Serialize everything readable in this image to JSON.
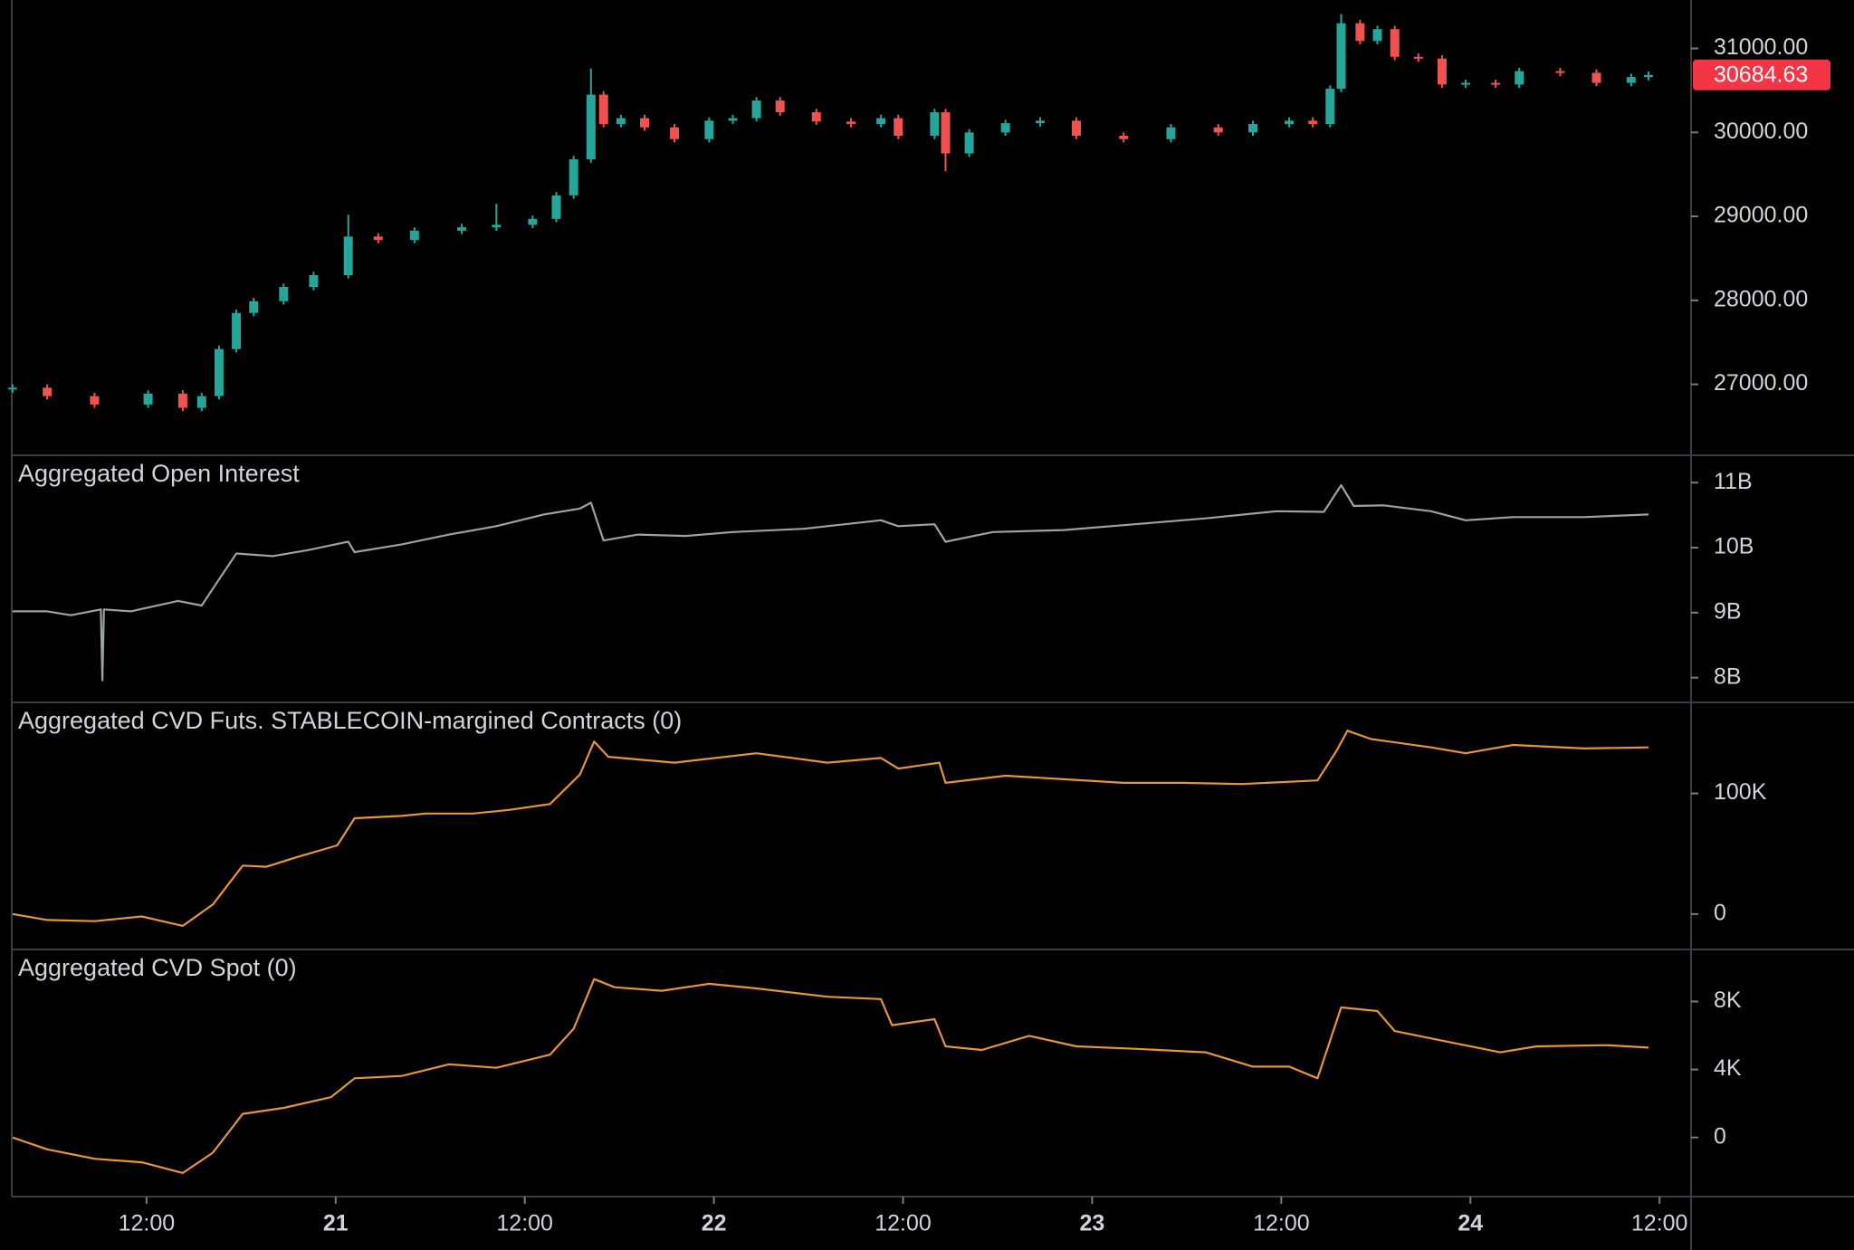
{
  "chart_data": [
    {
      "type": "candlestick",
      "up_color": "#26a69a",
      "down_color": "#ef5350",
      "last_color": "#f23645",
      "xlim": [
        3.45,
        110
      ],
      "ylim": [
        26155,
        31577
      ],
      "yticks": [
        {
          "value": 27000,
          "label": "27000.00"
        },
        {
          "value": 28000,
          "label": "28000.00"
        },
        {
          "value": 29000,
          "label": "29000.00"
        },
        {
          "value": 30000,
          "label": "30000.00"
        },
        {
          "value": 31000,
          "label": "31000.00"
        }
      ],
      "x": [
        3.5,
        5.7,
        8.7,
        12.1,
        14.3,
        15.5,
        16.6,
        17.7,
        18.8,
        20.7,
        22.6,
        24.8,
        26.7,
        29,
        32,
        34.2,
        36.5,
        38,
        39.1,
        40.2,
        41,
        42.1,
        43.6,
        45.5,
        47.7,
        49.2,
        50.7,
        52.2,
        54.5,
        56.7,
        58.6,
        59.7,
        62,
        62.7,
        64.2,
        66.5,
        68.7,
        71,
        74,
        77,
        80,
        82.2,
        84.5,
        86,
        87.1,
        87.8,
        89,
        90.1,
        91.2,
        92.7,
        94.2,
        95.7,
        97.6,
        99.1,
        101.7,
        104,
        106.2,
        107.3
      ],
      "open": [
        26940,
        26960,
        26860,
        26760,
        26890,
        26720,
        26860,
        27420,
        27850,
        27990,
        28160,
        28300,
        28760,
        28720,
        28830,
        28870,
        28900,
        28970,
        29250,
        29680,
        30450,
        30100,
        30170,
        30060,
        29920,
        30140,
        30170,
        30380,
        30240,
        30130,
        30100,
        30170,
        29960,
        30240,
        29750,
        30000,
        30110,
        30140,
        29960,
        29920,
        30060,
        30000,
        30100,
        30140,
        30100,
        30520,
        31300,
        31090,
        31230,
        30900,
        30880,
        30570,
        30590,
        30570,
        30730,
        30710,
        30590,
        30660
      ],
      "high": [
        27000,
        27000,
        26900,
        26930,
        26930,
        26900,
        27460,
        27890,
        28030,
        28200,
        28340,
        29020,
        28800,
        28870,
        28910,
        29150,
        29010,
        29290,
        29720,
        30760,
        30490,
        30210,
        30210,
        30100,
        30180,
        30210,
        30420,
        30420,
        30280,
        30170,
        30210,
        30210,
        30280,
        30280,
        30040,
        30150,
        30180,
        30180,
        30000,
        30100,
        30100,
        30140,
        30180,
        30180,
        30560,
        31410,
        31340,
        31270,
        31270,
        30940,
        30920,
        30630,
        30630,
        30770,
        30770,
        30750,
        30700,
        30725
      ],
      "low": [
        26900,
        26820,
        26720,
        26720,
        26680,
        26680,
        26820,
        27380,
        27810,
        27950,
        28120,
        28260,
        28680,
        28680,
        28790,
        28830,
        28860,
        28930,
        29210,
        29640,
        30060,
        30060,
        30020,
        29880,
        29880,
        30100,
        30130,
        30200,
        30090,
        30060,
        30060,
        29920,
        29920,
        29540,
        29710,
        29960,
        30070,
        29920,
        29880,
        29880,
        29960,
        29960,
        30060,
        30060,
        30060,
        30480,
        31050,
        31050,
        30860,
        30840,
        30530,
        30530,
        30530,
        30530,
        30670,
        30550,
        30550,
        30620
      ],
      "close": [
        26960,
        26860,
        26760,
        26890,
        26720,
        26860,
        27420,
        27850,
        27990,
        28160,
        28300,
        28760,
        28720,
        28830,
        28870,
        28900,
        28970,
        29250,
        29680,
        30450,
        30100,
        30170,
        30060,
        29920,
        30140,
        30170,
        30380,
        30240,
        30130,
        30100,
        30170,
        29960,
        30240,
        29750,
        30000,
        30110,
        30140,
        29960,
        29920,
        30060,
        30000,
        30100,
        30140,
        30100,
        30520,
        31300,
        31090,
        31230,
        30900,
        30880,
        30570,
        30590,
        30570,
        30730,
        30710,
        30590,
        30660,
        30684.63
      ]
    },
    {
      "type": "line",
      "title": "Aggregated Open Interest",
      "color": "#9aa5a3",
      "xlim": [
        3.45,
        110
      ],
      "ylim": [
        7620000000,
        11420000000
      ],
      "yticks": [
        {
          "value": 8000000000,
          "label": "8B"
        },
        {
          "value": 9000000000,
          "label": "9B"
        },
        {
          "value": 10000000000,
          "label": "10B"
        },
        {
          "value": 11000000000,
          "label": "11B"
        }
      ],
      "x": [
        3.5,
        5.7,
        7.2,
        9.1,
        9.2,
        9.3,
        11,
        14,
        15.5,
        16.6,
        17.7,
        20,
        22.2,
        24.8,
        25.2,
        28.2,
        31.2,
        34.2,
        37.2,
        39.5,
        40.2,
        41,
        43.2,
        46.2,
        49.2,
        53.7,
        58.6,
        59.7,
        62,
        62.7,
        65.7,
        70.2,
        74.7,
        79.2,
        83.7,
        86.7,
        87.8,
        88.6,
        90.5,
        93.5,
        95.7,
        98.7,
        103.2,
        107.3
      ],
      "values": [
        9020000000,
        9020000000,
        8960000000,
        9050000000,
        7960000000,
        9050000000,
        9020000000,
        9180000000,
        9110000000,
        9510000000,
        9910000000,
        9870000000,
        9960000000,
        10090000000,
        9930000000,
        10050000000,
        10200000000,
        10330000000,
        10510000000,
        10600000000,
        10690000000,
        10110000000,
        10200000000,
        10180000000,
        10240000000,
        10290000000,
        10420000000,
        10330000000,
        10360000000,
        10090000000,
        10240000000,
        10270000000,
        10360000000,
        10450000000,
        10560000000,
        10550000000,
        10960000000,
        10640000000,
        10650000000,
        10560000000,
        10420000000,
        10470000000,
        10470000000,
        10510000000
      ]
    },
    {
      "type": "line",
      "title": "Aggregated CVD Futs. STABLECOIN-margined Contracts (0)",
      "color": "#e8943a",
      "xlim": [
        3.45,
        110
      ],
      "ylim": [
        -29400,
        175500
      ],
      "yticks": [
        0,
        {
          "value": 100000,
          "label": "100K"
        }
      ],
      "x": [
        3.5,
        5.7,
        8.7,
        11.7,
        14.3,
        16.2,
        18.1,
        19.6,
        21.5,
        24.1,
        25.2,
        28.2,
        29.7,
        32.7,
        35,
        37.6,
        39.5,
        40.4,
        41.3,
        45.5,
        50.7,
        55.2,
        58.6,
        59.7,
        62.3,
        62.7,
        66.5,
        70.2,
        74,
        77.7,
        81.5,
        86.3,
        87.5,
        88.2,
        89.7,
        93.5,
        95.7,
        98.7,
        103.2,
        107.3
      ],
      "values": [
        0,
        -4900,
        -5900,
        -2000,
        -9800,
        7800,
        40200,
        39200,
        47000,
        56900,
        79400,
        81400,
        83300,
        83300,
        86300,
        91200,
        115700,
        143100,
        130400,
        125500,
        133300,
        125500,
        129400,
        120600,
        125500,
        108800,
        114700,
        111800,
        108800,
        108800,
        107800,
        110800,
        135300,
        152000,
        145100,
        138200,
        133300,
        140200,
        137300,
        138200
      ]
    },
    {
      "type": "line",
      "title": "Aggregated CVD Spot (0)",
      "color": "#e8943a",
      "xlim": [
        3.45,
        110
      ],
      "ylim": [
        -3478,
        11061
      ],
      "yticks": [
        0,
        {
          "value": 4000,
          "label": "4K"
        },
        {
          "value": 8000,
          "label": "8K"
        }
      ],
      "xticks": [
        {
          "value": 12,
          "label": "12:00"
        },
        {
          "value": 24,
          "label": "21"
        },
        {
          "value": 36,
          "label": "12:00"
        },
        {
          "value": 48,
          "label": "22"
        },
        {
          "value": 60,
          "label": "12:00"
        },
        {
          "value": 72,
          "label": "23"
        },
        {
          "value": 84,
          "label": "12:00"
        },
        {
          "value": 96,
          "label": "24"
        },
        {
          "value": 108,
          "label": "12:00"
        }
      ],
      "x": [
        3.5,
        5.7,
        8.7,
        11.7,
        14.3,
        16.2,
        18.1,
        20.7,
        23.7,
        25.2,
        28.2,
        31.2,
        34.2,
        37.6,
        39.1,
        40.4,
        41.7,
        44.7,
        47.7,
        50.7,
        55.2,
        58.6,
        59.3,
        62,
        62.7,
        65,
        68,
        71,
        74.7,
        79.2,
        82.2,
        84.5,
        86.3,
        87.8,
        90.1,
        91.2,
        94.2,
        97.9,
        100.2,
        104.7,
        107.3
      ],
      "values": [
        0,
        -700,
        -1250,
        -1460,
        -2090,
        -900,
        1390,
        1740,
        2370,
        3480,
        3620,
        4310,
        4100,
        4870,
        6400,
        9320,
        8840,
        8630,
        9040,
        8770,
        8280,
        8140,
        6610,
        6960,
        5360,
        5150,
        5980,
        5360,
        5220,
        5010,
        4170,
        4170,
        3480,
        7650,
        7440,
        6260,
        5700,
        5010,
        5360,
        5430,
        5290
      ]
    }
  ]
}
